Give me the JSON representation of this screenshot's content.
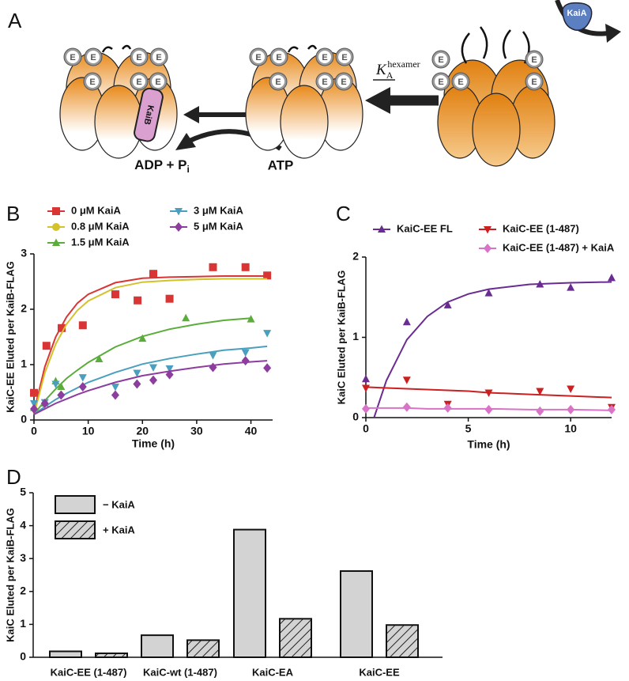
{
  "panel_labels": [
    "A",
    "B",
    "C",
    "D"
  ],
  "diagram": {
    "e_label": "E",
    "kaib": "KaiB",
    "adp": "ADP + P",
    "adp_sub": "i",
    "atp": "ATP",
    "k": "K",
    "k_sub": "A",
    "k_sup": "hexamer",
    "kaia": "KaiA"
  },
  "chart_data": [
    {
      "type": "scatter",
      "xlabel": "Time (h)",
      "ylabel": "KaiC-EE Eluted per KaiB-FLAG",
      "xlim": [
        0,
        44
      ],
      "ylim": [
        0,
        3
      ],
      "xticks": [
        0,
        10,
        20,
        30,
        40
      ],
      "yticks": [
        0,
        1,
        2,
        3
      ],
      "series": [
        {
          "name": "0 μM KaiA",
          "color": "#d93535",
          "marker": "square",
          "x": [
            0,
            2.3,
            5.1,
            9,
            15,
            19.1,
            22,
            25,
            33,
            39,
            43
          ],
          "values": [
            0.49,
            1.34,
            1.66,
            1.71,
            2.27,
            2.16,
            2.64,
            2.19,
            2.76,
            2.76,
            2.61
          ],
          "fit_x": [
            0,
            2,
            4,
            6,
            8,
            10,
            15,
            20,
            25,
            30,
            35,
            40,
            43
          ],
          "fit_values": [
            0.15,
            0.96,
            1.5,
            1.86,
            2.11,
            2.27,
            2.48,
            2.56,
            2.58,
            2.59,
            2.6,
            2.6,
            2.6
          ]
        },
        {
          "name": "0.8 μM KaiA",
          "color": "#d4c22a",
          "marker": "circle",
          "x": [],
          "values": [],
          "fit_x": [
            0,
            2,
            4,
            6,
            8,
            10,
            15,
            20,
            25,
            30,
            35,
            40,
            43
          ],
          "fit_values": [
            0.1,
            0.85,
            1.37,
            1.73,
            1.98,
            2.15,
            2.39,
            2.49,
            2.52,
            2.54,
            2.55,
            2.55,
            2.55
          ]
        },
        {
          "name": "1.5 μM KaiA",
          "color": "#5aad3a",
          "marker": "triangle",
          "x": [
            0,
            2,
            4,
            5,
            12,
            20,
            28,
            40
          ],
          "values": [
            0.22,
            0.3,
            0.7,
            0.6,
            1.1,
            1.47,
            1.84,
            1.82
          ],
          "fit_x": [
            0,
            2,
            4,
            6,
            8,
            10,
            15,
            20,
            25,
            30,
            35,
            40
          ],
          "fit_values": [
            0.1,
            0.35,
            0.56,
            0.75,
            0.9,
            1.04,
            1.32,
            1.51,
            1.64,
            1.73,
            1.8,
            1.84
          ]
        },
        {
          "name": "3 μM KaiA",
          "color": "#4a9fbf",
          "marker": "triangle-down",
          "x": [
            0,
            2,
            4,
            9,
            15,
            19,
            22,
            25,
            33,
            39,
            43
          ],
          "values": [
            0.3,
            0.32,
            0.65,
            0.77,
            0.6,
            0.85,
            0.95,
            0.93,
            1.17,
            1.22,
            1.57
          ],
          "fit_x": [
            0,
            2,
            4,
            6,
            8,
            10,
            15,
            20,
            25,
            30,
            35,
            40,
            43
          ],
          "fit_values": [
            0.1,
            0.24,
            0.37,
            0.48,
            0.58,
            0.68,
            0.86,
            1.01,
            1.11,
            1.19,
            1.26,
            1.3,
            1.33
          ]
        },
        {
          "name": "5 μM KaiA",
          "color": "#8c3d9e",
          "marker": "diamond",
          "x": [
            0,
            2,
            5,
            9,
            15,
            19,
            22,
            25,
            33,
            39,
            43
          ],
          "values": [
            0.2,
            0.3,
            0.45,
            0.6,
            0.45,
            0.65,
            0.72,
            0.82,
            0.95,
            1.07,
            0.94
          ],
          "fit_x": [
            0,
            2,
            4,
            6,
            8,
            10,
            15,
            20,
            25,
            30,
            35,
            40,
            43
          ],
          "fit_values": [
            0.1,
            0.2,
            0.3,
            0.38,
            0.46,
            0.53,
            0.68,
            0.8,
            0.88,
            0.95,
            1.01,
            1.05,
            1.07
          ]
        }
      ]
    },
    {
      "type": "scatter",
      "xlabel": "Time (h)",
      "ylabel": "KaiC Eluted per KaiB-FLAG",
      "xlim": [
        0,
        12
      ],
      "ylim": [
        0,
        2
      ],
      "xticks": [
        0,
        5,
        10
      ],
      "yticks": [
        0,
        1,
        2
      ],
      "series": [
        {
          "name": "KaiC-EE FL",
          "color": "#6a2c91",
          "marker": "triangle",
          "x": [
            0,
            2,
            4,
            6,
            8.5,
            10,
            12
          ],
          "values": [
            0.48,
            1.19,
            1.4,
            1.55,
            1.66,
            1.62,
            1.74
          ],
          "fit_x": [
            0.4,
            1,
            2,
            3,
            4,
            5,
            6,
            8,
            10,
            12
          ],
          "fit_values": [
            0,
            0.46,
            0.97,
            1.26,
            1.44,
            1.54,
            1.6,
            1.66,
            1.68,
            1.69
          ]
        },
        {
          "name": "KaiC-EE (1-487)",
          "color": "#cc2020",
          "marker": "triangle-down",
          "x": [
            0,
            2,
            4,
            6,
            8.5,
            10,
            12
          ],
          "values": [
            0.37,
            0.47,
            0.17,
            0.31,
            0.33,
            0.36,
            0.13
          ],
          "fit_x": [
            0,
            1,
            2,
            3,
            4,
            5,
            6,
            8,
            10,
            12
          ],
          "fit_values": [
            0.38,
            0.37,
            0.36,
            0.35,
            0.34,
            0.33,
            0.31,
            0.29,
            0.27,
            0.25
          ]
        },
        {
          "name": "KaiC-EE (1-487) + KaiA",
          "color": "#d873c8",
          "marker": "diamond",
          "x": [
            0,
            2,
            4,
            6,
            8.5,
            10,
            12
          ],
          "values": [
            0.11,
            0.13,
            0.12,
            0.1,
            0.08,
            0.1,
            0.1
          ],
          "fit_x": [
            0,
            1,
            2,
            3,
            4,
            5,
            6,
            8,
            10,
            12
          ],
          "fit_values": [
            0.12,
            0.12,
            0.12,
            0.11,
            0.11,
            0.11,
            0.11,
            0.1,
            0.1,
            0.09
          ]
        }
      ]
    },
    {
      "type": "bar",
      "ylabel": "KaiC Eluted per KaiB-FLAG",
      "ylim": [
        0,
        5
      ],
      "yticks": [
        0,
        1,
        2,
        3,
        4,
        5
      ],
      "categories": [
        "KaiC-EE (1-487)",
        "KaiC-wt (1-487)",
        "KaiC-EA",
        "KaiC-EE"
      ],
      "series": [
        {
          "name": "− KaiA",
          "color": "#d3d3d3",
          "hatch": false,
          "values": [
            0.18,
            0.67,
            3.88,
            2.62
          ]
        },
        {
          "name": "+ KaiA",
          "color": "#d3d3d3",
          "hatch": true,
          "values": [
            0.12,
            0.52,
            1.17,
            0.98
          ]
        }
      ]
    }
  ]
}
